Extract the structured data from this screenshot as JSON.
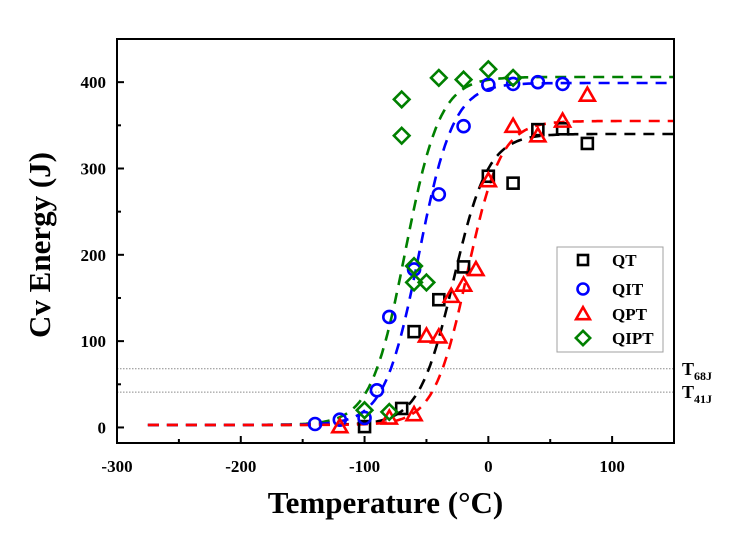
{
  "chart_data": {
    "type": "scatter",
    "title": "",
    "xlabel": "Temperature (°C)",
    "ylabel": "Cv Energy (J)",
    "xlim": [
      -300,
      150
    ],
    "ylim": [
      -18,
      450
    ],
    "x_ticks": [
      -300,
      -200,
      -100,
      0,
      100
    ],
    "x_minor_ticks": [
      -250,
      -150,
      -50,
      50
    ],
    "y_ticks": [
      0,
      100,
      200,
      300,
      400
    ],
    "y_minor_ticks": [
      50,
      150,
      250,
      350
    ],
    "grid": false,
    "legend_position": "center-right",
    "reference_lines": [
      {
        "name": "T68J",
        "label_main": "T",
        "label_sub": "68J",
        "y": 68
      },
      {
        "name": "T41J",
        "label_main": "T",
        "label_sub": "41J",
        "y": 41
      }
    ],
    "series": [
      {
        "name": "QT",
        "color": "#000000",
        "marker": "square",
        "points": [
          [
            -100,
            1
          ],
          [
            -70,
            22
          ],
          [
            -60,
            111
          ],
          [
            -40,
            148
          ],
          [
            -20,
            186
          ],
          [
            0,
            291
          ],
          [
            20,
            283
          ],
          [
            40,
            345
          ],
          [
            60,
            346
          ],
          [
            80,
            329
          ]
        ],
        "fit": {
          "model": "tanh",
          "lower_shelf": 3,
          "upper_shelf": 340,
          "t0": -28,
          "c": 28
        }
      },
      {
        "name": "QIT",
        "color": "#0000ff",
        "marker": "circle",
        "points": [
          [
            -140,
            4
          ],
          [
            -120,
            9
          ],
          [
            -100,
            11
          ],
          [
            -90,
            43
          ],
          [
            -80,
            128
          ],
          [
            -60,
            183
          ],
          [
            -40,
            270
          ],
          [
            -20,
            349
          ],
          [
            0,
            397
          ],
          [
            20,
            398
          ],
          [
            40,
            400
          ],
          [
            60,
            398
          ]
        ],
        "fit": {
          "model": "tanh",
          "lower_shelf": 3,
          "upper_shelf": 399,
          "t0": -56,
          "c": 28
        }
      },
      {
        "name": "QPT",
        "color": "#ff0000",
        "marker": "triangle",
        "points": [
          [
            -120,
            1
          ],
          [
            -80,
            11
          ],
          [
            -60,
            15
          ],
          [
            -50,
            106
          ],
          [
            -40,
            105
          ],
          [
            -30,
            152
          ],
          [
            -20,
            165
          ],
          [
            -10,
            183
          ],
          [
            0,
            286
          ],
          [
            20,
            349
          ],
          [
            40,
            338
          ],
          [
            60,
            355
          ],
          [
            80,
            385
          ]
        ],
        "fit": {
          "model": "tanh",
          "lower_shelf": 3,
          "upper_shelf": 355,
          "t0": -17,
          "c": 27
        }
      },
      {
        "name": "QIPT",
        "color": "#008000",
        "marker": "diamond",
        "points": [
          [
            -100,
            20
          ],
          [
            -80,
            18
          ],
          [
            -70,
            338
          ],
          [
            -70,
            380
          ],
          [
            -60,
            187
          ],
          [
            -60,
            168
          ],
          [
            -50,
            168
          ],
          [
            -40,
            405
          ],
          [
            -20,
            403
          ],
          [
            0,
            415
          ],
          [
            20,
            405
          ]
        ],
        "fit": {
          "model": "tanh",
          "lower_shelf": 3,
          "upper_shelf": 406,
          "t0": -67,
          "c": 28
        }
      }
    ],
    "fit_x_range": [
      -275,
      150
    ]
  }
}
